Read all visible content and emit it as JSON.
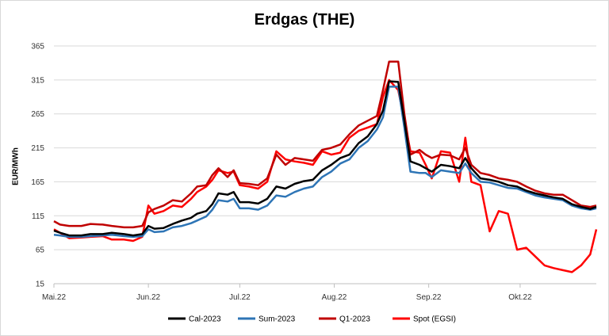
{
  "chart_data": {
    "type": "line",
    "title": "Erdgas (THE)",
    "ylabel": "EUR/MWh",
    "xlabel": "",
    "ylim": [
      15,
      365
    ],
    "yticks": [
      15,
      65,
      115,
      165,
      215,
      265,
      315,
      365
    ],
    "xlim": [
      "2022-05-01",
      "2022-10-26"
    ],
    "xticks": [
      {
        "date": "2022-05-01",
        "label": "Mai.22"
      },
      {
        "date": "2022-06-01",
        "label": "Jun.22"
      },
      {
        "date": "2022-07-01",
        "label": "Jul.22"
      },
      {
        "date": "2022-08-01",
        "label": "Aug.22"
      },
      {
        "date": "2022-09-01",
        "label": "Sep.22"
      },
      {
        "date": "2022-10-01",
        "label": "Okt.22"
      }
    ],
    "grid": "horizontal",
    "legend_position": "bottom",
    "series": [
      {
        "name": "Cal-2023",
        "color": "#000000",
        "points": [
          [
            "2022-05-01",
            93
          ],
          [
            "2022-05-03",
            90
          ],
          [
            "2022-05-06",
            86
          ],
          [
            "2022-05-10",
            86
          ],
          [
            "2022-05-13",
            88
          ],
          [
            "2022-05-17",
            88
          ],
          [
            "2022-05-20",
            90
          ],
          [
            "2022-05-24",
            88
          ],
          [
            "2022-05-27",
            86
          ],
          [
            "2022-05-30",
            88
          ],
          [
            "2022-06-01",
            100
          ],
          [
            "2022-06-03",
            96
          ],
          [
            "2022-06-06",
            97
          ],
          [
            "2022-06-09",
            103
          ],
          [
            "2022-06-12",
            108
          ],
          [
            "2022-06-15",
            112
          ],
          [
            "2022-06-17",
            118
          ],
          [
            "2022-06-20",
            122
          ],
          [
            "2022-06-22",
            132
          ],
          [
            "2022-06-24",
            148
          ],
          [
            "2022-06-27",
            146
          ],
          [
            "2022-06-29",
            150
          ],
          [
            "2022-07-01",
            135
          ],
          [
            "2022-07-04",
            135
          ],
          [
            "2022-07-07",
            133
          ],
          [
            "2022-07-10",
            140
          ],
          [
            "2022-07-13",
            158
          ],
          [
            "2022-07-16",
            155
          ],
          [
            "2022-07-19",
            162
          ],
          [
            "2022-07-22",
            166
          ],
          [
            "2022-07-25",
            168
          ],
          [
            "2022-07-28",
            182
          ],
          [
            "2022-07-31",
            190
          ],
          [
            "2022-08-03",
            200
          ],
          [
            "2022-08-06",
            205
          ],
          [
            "2022-08-09",
            222
          ],
          [
            "2022-08-12",
            232
          ],
          [
            "2022-08-15",
            250
          ],
          [
            "2022-08-17",
            270
          ],
          [
            "2022-08-19",
            313
          ],
          [
            "2022-08-22",
            312
          ],
          [
            "2022-08-24",
            255
          ],
          [
            "2022-08-26",
            195
          ],
          [
            "2022-08-29",
            190
          ],
          [
            "2022-08-31",
            185
          ],
          [
            "2022-09-02",
            180
          ],
          [
            "2022-09-05",
            190
          ],
          [
            "2022-09-08",
            188
          ],
          [
            "2022-09-11",
            185
          ],
          [
            "2022-09-13",
            200
          ],
          [
            "2022-09-15",
            185
          ],
          [
            "2022-09-18",
            170
          ],
          [
            "2022-09-21",
            168
          ],
          [
            "2022-09-24",
            165
          ],
          [
            "2022-09-27",
            160
          ],
          [
            "2022-09-30",
            158
          ],
          [
            "2022-10-03",
            152
          ],
          [
            "2022-10-06",
            148
          ],
          [
            "2022-10-09",
            145
          ],
          [
            "2022-10-12",
            142
          ],
          [
            "2022-10-15",
            140
          ],
          [
            "2022-10-18",
            132
          ],
          [
            "2022-10-21",
            128
          ],
          [
            "2022-10-24",
            125
          ],
          [
            "2022-10-26",
            128
          ]
        ]
      },
      {
        "name": "Sum-2023",
        "color": "#2e75b6",
        "points": [
          [
            "2022-05-01",
            87
          ],
          [
            "2022-05-03",
            86
          ],
          [
            "2022-05-06",
            84
          ],
          [
            "2022-05-10",
            84
          ],
          [
            "2022-05-13",
            85
          ],
          [
            "2022-05-17",
            86
          ],
          [
            "2022-05-20",
            87
          ],
          [
            "2022-05-24",
            85
          ],
          [
            "2022-05-27",
            84
          ],
          [
            "2022-05-30",
            85
          ],
          [
            "2022-06-01",
            95
          ],
          [
            "2022-06-03",
            91
          ],
          [
            "2022-06-06",
            92
          ],
          [
            "2022-06-09",
            98
          ],
          [
            "2022-06-12",
            100
          ],
          [
            "2022-06-15",
            104
          ],
          [
            "2022-06-17",
            108
          ],
          [
            "2022-06-20",
            114
          ],
          [
            "2022-06-22",
            124
          ],
          [
            "2022-06-24",
            138
          ],
          [
            "2022-06-27",
            136
          ],
          [
            "2022-06-29",
            140
          ],
          [
            "2022-07-01",
            126
          ],
          [
            "2022-07-04",
            126
          ],
          [
            "2022-07-07",
            124
          ],
          [
            "2022-07-10",
            130
          ],
          [
            "2022-07-13",
            145
          ],
          [
            "2022-07-16",
            143
          ],
          [
            "2022-07-19",
            150
          ],
          [
            "2022-07-22",
            155
          ],
          [
            "2022-07-25",
            158
          ],
          [
            "2022-07-28",
            172
          ],
          [
            "2022-07-31",
            180
          ],
          [
            "2022-08-03",
            192
          ],
          [
            "2022-08-06",
            198
          ],
          [
            "2022-08-09",
            215
          ],
          [
            "2022-08-12",
            225
          ],
          [
            "2022-08-15",
            242
          ],
          [
            "2022-08-17",
            260
          ],
          [
            "2022-08-19",
            305
          ],
          [
            "2022-08-22",
            305
          ],
          [
            "2022-08-24",
            245
          ],
          [
            "2022-08-26",
            180
          ],
          [
            "2022-08-29",
            178
          ],
          [
            "2022-08-31",
            178
          ],
          [
            "2022-09-02",
            172
          ],
          [
            "2022-09-05",
            182
          ],
          [
            "2022-09-08",
            180
          ],
          [
            "2022-09-11",
            178
          ],
          [
            "2022-09-13",
            192
          ],
          [
            "2022-09-15",
            178
          ],
          [
            "2022-09-18",
            165
          ],
          [
            "2022-09-21",
            164
          ],
          [
            "2022-09-24",
            160
          ],
          [
            "2022-09-27",
            156
          ],
          [
            "2022-09-30",
            155
          ],
          [
            "2022-10-03",
            150
          ],
          [
            "2022-10-06",
            145
          ],
          [
            "2022-10-09",
            142
          ],
          [
            "2022-10-12",
            140
          ],
          [
            "2022-10-15",
            138
          ],
          [
            "2022-10-18",
            130
          ],
          [
            "2022-10-21",
            126
          ],
          [
            "2022-10-24",
            124
          ],
          [
            "2022-10-26",
            126
          ]
        ]
      },
      {
        "name": "Q1-2023",
        "color": "#c00000",
        "points": [
          [
            "2022-05-01",
            107
          ],
          [
            "2022-05-03",
            102
          ],
          [
            "2022-05-06",
            100
          ],
          [
            "2022-05-10",
            100
          ],
          [
            "2022-05-13",
            103
          ],
          [
            "2022-05-17",
            102
          ],
          [
            "2022-05-20",
            100
          ],
          [
            "2022-05-24",
            98
          ],
          [
            "2022-05-27",
            98
          ],
          [
            "2022-05-30",
            100
          ],
          [
            "2022-06-01",
            120
          ],
          [
            "2022-06-03",
            125
          ],
          [
            "2022-06-06",
            130
          ],
          [
            "2022-06-09",
            138
          ],
          [
            "2022-06-12",
            136
          ],
          [
            "2022-06-15",
            148
          ],
          [
            "2022-06-17",
            158
          ],
          [
            "2022-06-20",
            160
          ],
          [
            "2022-06-22",
            175
          ],
          [
            "2022-06-24",
            185
          ],
          [
            "2022-06-27",
            172
          ],
          [
            "2022-06-29",
            182
          ],
          [
            "2022-07-01",
            163
          ],
          [
            "2022-07-04",
            162
          ],
          [
            "2022-07-07",
            160
          ],
          [
            "2022-07-10",
            170
          ],
          [
            "2022-07-13",
            205
          ],
          [
            "2022-07-16",
            190
          ],
          [
            "2022-07-19",
            200
          ],
          [
            "2022-07-22",
            198
          ],
          [
            "2022-07-25",
            196
          ],
          [
            "2022-07-28",
            212
          ],
          [
            "2022-07-31",
            215
          ],
          [
            "2022-08-03",
            220
          ],
          [
            "2022-08-06",
            235
          ],
          [
            "2022-08-09",
            248
          ],
          [
            "2022-08-12",
            255
          ],
          [
            "2022-08-15",
            262
          ],
          [
            "2022-08-17",
            300
          ],
          [
            "2022-08-19",
            342
          ],
          [
            "2022-08-22",
            342
          ],
          [
            "2022-08-24",
            265
          ],
          [
            "2022-08-26",
            205
          ],
          [
            "2022-08-29",
            212
          ],
          [
            "2022-08-31",
            205
          ],
          [
            "2022-09-02",
            200
          ],
          [
            "2022-09-05",
            205
          ],
          [
            "2022-09-08",
            204
          ],
          [
            "2022-09-11",
            198
          ],
          [
            "2022-09-13",
            215
          ],
          [
            "2022-09-15",
            190
          ],
          [
            "2022-09-18",
            178
          ],
          [
            "2022-09-21",
            175
          ],
          [
            "2022-09-24",
            170
          ],
          [
            "2022-09-27",
            168
          ],
          [
            "2022-09-30",
            165
          ],
          [
            "2022-10-03",
            158
          ],
          [
            "2022-10-06",
            152
          ],
          [
            "2022-10-09",
            148
          ],
          [
            "2022-10-12",
            146
          ],
          [
            "2022-10-15",
            146
          ],
          [
            "2022-10-18",
            138
          ],
          [
            "2022-10-21",
            130
          ],
          [
            "2022-10-24",
            128
          ],
          [
            "2022-10-26",
            130
          ]
        ]
      },
      {
        "name": "Spot (EGSI)",
        "color": "#ff0000",
        "points": [
          [
            "2022-05-01",
            95
          ],
          [
            "2022-05-03",
            90
          ],
          [
            "2022-05-06",
            82
          ],
          [
            "2022-05-10",
            83
          ],
          [
            "2022-05-13",
            84
          ],
          [
            "2022-05-17",
            85
          ],
          [
            "2022-05-20",
            80
          ],
          [
            "2022-05-24",
            80
          ],
          [
            "2022-05-27",
            78
          ],
          [
            "2022-05-30",
            84
          ],
          [
            "2022-06-01",
            130
          ],
          [
            "2022-06-03",
            118
          ],
          [
            "2022-06-06",
            122
          ],
          [
            "2022-06-09",
            130
          ],
          [
            "2022-06-12",
            128
          ],
          [
            "2022-06-15",
            140
          ],
          [
            "2022-06-17",
            150
          ],
          [
            "2022-06-20",
            158
          ],
          [
            "2022-06-22",
            168
          ],
          [
            "2022-06-24",
            182
          ],
          [
            "2022-06-27",
            178
          ],
          [
            "2022-06-29",
            180
          ],
          [
            "2022-07-01",
            160
          ],
          [
            "2022-07-04",
            158
          ],
          [
            "2022-07-07",
            155
          ],
          [
            "2022-07-10",
            165
          ],
          [
            "2022-07-13",
            210
          ],
          [
            "2022-07-16",
            198
          ],
          [
            "2022-07-19",
            195
          ],
          [
            "2022-07-22",
            193
          ],
          [
            "2022-07-25",
            190
          ],
          [
            "2022-07-28",
            210
          ],
          [
            "2022-07-31",
            205
          ],
          [
            "2022-08-03",
            208
          ],
          [
            "2022-08-06",
            230
          ],
          [
            "2022-08-09",
            240
          ],
          [
            "2022-08-12",
            245
          ],
          [
            "2022-08-15",
            250
          ],
          [
            "2022-08-17",
            290
          ],
          [
            "2022-08-19",
            315
          ],
          [
            "2022-08-22",
            300
          ],
          [
            "2022-08-24",
            255
          ],
          [
            "2022-08-26",
            210
          ],
          [
            "2022-08-29",
            208
          ],
          [
            "2022-08-31",
            190
          ],
          [
            "2022-09-02",
            170
          ],
          [
            "2022-09-05",
            210
          ],
          [
            "2022-09-08",
            208
          ],
          [
            "2022-09-11",
            165
          ],
          [
            "2022-09-13",
            230
          ],
          [
            "2022-09-15",
            165
          ],
          [
            "2022-09-18",
            160
          ],
          [
            "2022-09-21",
            92
          ],
          [
            "2022-09-24",
            122
          ],
          [
            "2022-09-27",
            118
          ],
          [
            "2022-09-30",
            65
          ],
          [
            "2022-10-03",
            68
          ],
          [
            "2022-10-06",
            55
          ],
          [
            "2022-10-09",
            42
          ],
          [
            "2022-10-12",
            38
          ],
          [
            "2022-10-15",
            35
          ],
          [
            "2022-10-18",
            32
          ],
          [
            "2022-10-21",
            42
          ],
          [
            "2022-10-24",
            58
          ],
          [
            "2022-10-26",
            95
          ]
        ]
      }
    ]
  }
}
